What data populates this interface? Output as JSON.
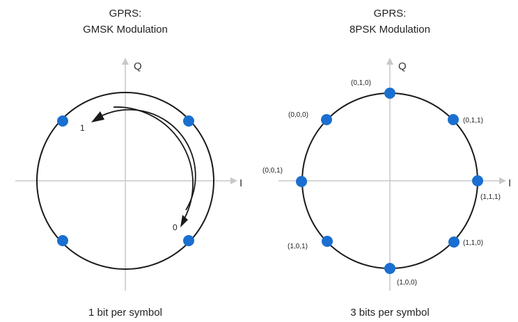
{
  "colors": {
    "point": "#1a6fd0",
    "circle": "#1a1a1a",
    "axis": "#c8c8c8",
    "arrow_tip": "#c8c8c8"
  },
  "left": {
    "title_line1": "GPRS:",
    "title_line2": "GMSK Modulation",
    "axis_q": "Q",
    "axis_i": "I",
    "bit_1": "1",
    "bit_0": "0",
    "caption": "1 bit per symbol"
  },
  "right": {
    "title_line1": "GPRS:",
    "title_line2": "8PSK Modulation",
    "axis_q": "Q",
    "axis_i": "I",
    "caption": "3 bits per symbol",
    "points": [
      {
        "label": "(0,1,0)"
      },
      {
        "label": "(0,1,1)"
      },
      {
        "label": "(1,1,1)"
      },
      {
        "label": "(1,1,0)"
      },
      {
        "label": "(1,0,0)"
      },
      {
        "label": "(1,0,1)"
      },
      {
        "label": "(0,0,1)"
      },
      {
        "label": "(0,0,0)"
      }
    ]
  }
}
